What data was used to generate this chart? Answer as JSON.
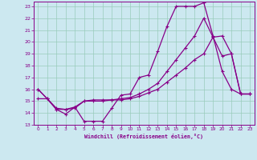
{
  "xlabel": "Windchill (Refroidissement éolien,°C)",
  "bg_color": "#cce8f0",
  "line_color": "#880088",
  "grid_color": "#99ccbb",
  "xlim": [
    -0.5,
    23.5
  ],
  "ylim": [
    13,
    23.4
  ],
  "xticks": [
    0,
    1,
    2,
    3,
    4,
    5,
    6,
    7,
    8,
    9,
    10,
    11,
    12,
    13,
    14,
    15,
    16,
    17,
    18,
    19,
    20,
    21,
    22,
    23
  ],
  "yticks": [
    13,
    14,
    15,
    16,
    17,
    18,
    19,
    20,
    21,
    22,
    23
  ],
  "line1_x": [
    0,
    1,
    2,
    3,
    4,
    5,
    6,
    7,
    8,
    9,
    10,
    11,
    12,
    13,
    14,
    15,
    16,
    17,
    18,
    19,
    20,
    21,
    22,
    23
  ],
  "line1_y": [
    16.0,
    15.2,
    14.3,
    13.9,
    14.5,
    13.3,
    13.3,
    13.3,
    14.4,
    15.5,
    15.6,
    17.0,
    17.2,
    19.2,
    21.3,
    23.0,
    23.0,
    23.0,
    23.3,
    20.5,
    17.5,
    16.0,
    15.6,
    15.6
  ],
  "line2_x": [
    0,
    1,
    2,
    3,
    4,
    5,
    6,
    7,
    8,
    9,
    10,
    11,
    12,
    13,
    14,
    15,
    16,
    17,
    18,
    19,
    20,
    21,
    22,
    23
  ],
  "line2_y": [
    16.0,
    15.2,
    14.4,
    14.3,
    14.5,
    15.0,
    15.1,
    15.1,
    15.1,
    15.2,
    15.3,
    15.6,
    16.0,
    16.5,
    17.5,
    18.5,
    19.5,
    20.5,
    22.0,
    20.4,
    18.8,
    19.0,
    15.6,
    15.6
  ],
  "line3_x": [
    0,
    1,
    2,
    3,
    4,
    5,
    6,
    7,
    8,
    9,
    10,
    11,
    12,
    13,
    14,
    15,
    16,
    17,
    18,
    19,
    20,
    21,
    22,
    23
  ],
  "line3_y": [
    15.2,
    15.2,
    14.3,
    14.3,
    14.4,
    15.0,
    15.0,
    15.0,
    15.1,
    15.1,
    15.2,
    15.4,
    15.7,
    16.0,
    16.6,
    17.2,
    17.8,
    18.5,
    19.0,
    20.4,
    20.5,
    19.0,
    15.6,
    15.6
  ]
}
